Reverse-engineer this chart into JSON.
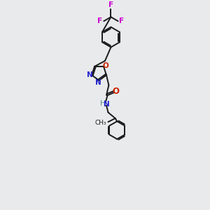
{
  "bg_color": "#e8eaec",
  "bond_color": "#1a1a1a",
  "n_color": "#2222cc",
  "o_color": "#cc2200",
  "f_color": "#cc00cc",
  "nh_color": "#558888",
  "line_width": 1.4,
  "font_size": 7.5,
  "xlim": [
    0,
    10
  ],
  "ylim": [
    0,
    17
  ]
}
